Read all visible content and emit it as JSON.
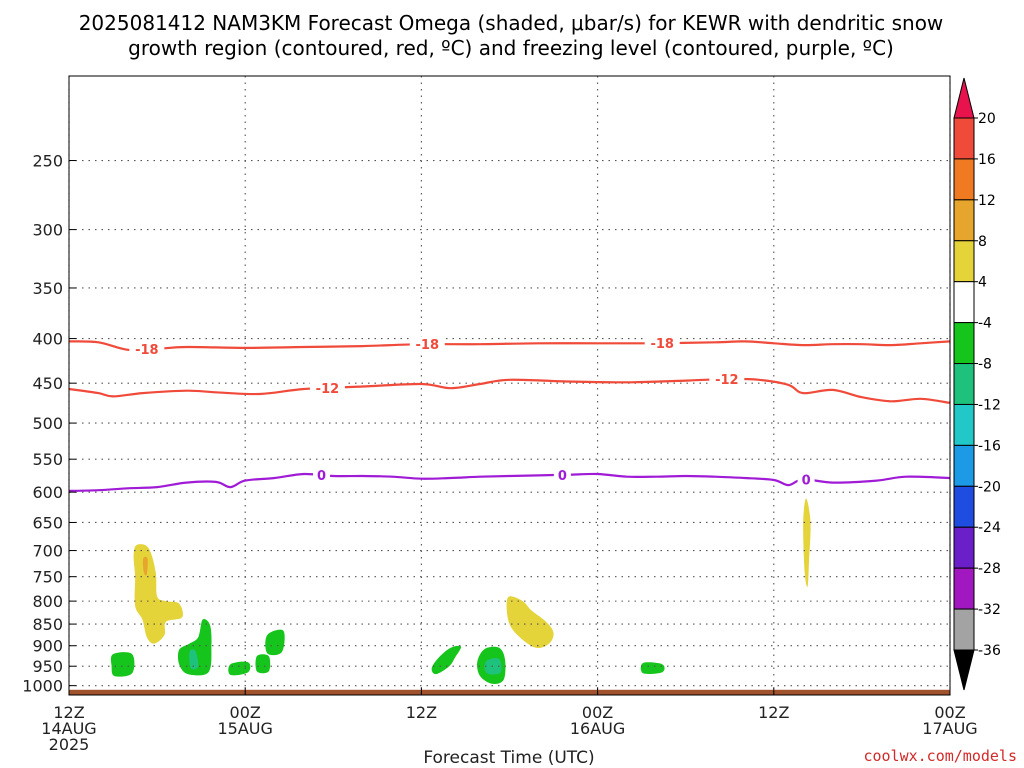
{
  "chart_data": {
    "type": "heatmap",
    "title_lines": [
      "2025081412 NAM3KM Forecast Omega (shaded, μbar/s) for KEWR with dendritic snow",
      "growth region (contoured, red, ºC) and freezing level (contoured, purple, ºC)"
    ],
    "xlabel": "Forecast Time (UTC)",
    "x_range_hours": [
      0,
      60
    ],
    "y_scale": "log-pressure",
    "y_range_hpa": [
      1025,
      200
    ],
    "y_ticks": [
      250,
      300,
      350,
      400,
      450,
      500,
      550,
      600,
      650,
      700,
      750,
      800,
      850,
      900,
      950,
      1000
    ],
    "x_ticks": [
      {
        "hour": 0,
        "lines": [
          "12Z",
          "14AUG",
          "2025"
        ]
      },
      {
        "hour": 12,
        "lines": [
          "00Z",
          "15AUG"
        ]
      },
      {
        "hour": 24,
        "lines": [
          "12Z"
        ]
      },
      {
        "hour": 36,
        "lines": [
          "00Z",
          "16AUG"
        ]
      },
      {
        "hour": 48,
        "lines": [
          "12Z"
        ]
      },
      {
        "hour": 60,
        "lines": [
          "00Z",
          "17AUG"
        ]
      }
    ],
    "grid": true,
    "colorbar": {
      "labels": [
        "20",
        "16",
        "12",
        "8",
        "4",
        "-4",
        "-8",
        "-12",
        "-16",
        "-20",
        "-24",
        "-28",
        "-32",
        "-36"
      ],
      "colors": [
        "#e8134d",
        "#ef4a3a",
        "#f07a22",
        "#e6a52c",
        "#e5d33a",
        "#ffffff",
        "#16c51c",
        "#1ec27d",
        "#22c8c8",
        "#1c9ae6",
        "#1f4de0",
        "#6a1fc8",
        "#a117c0",
        "#a3a3a3",
        "#000000"
      ]
    },
    "contours": [
      {
        "label": "-18",
        "color": "#ef4a3a",
        "points": [
          [
            0,
            403
          ],
          [
            2,
            404
          ],
          [
            4,
            412
          ],
          [
            6,
            411
          ],
          [
            8,
            409
          ],
          [
            12,
            410
          ],
          [
            16,
            409
          ],
          [
            20,
            408
          ],
          [
            24,
            406
          ],
          [
            28,
            406
          ],
          [
            32,
            405
          ],
          [
            36,
            405
          ],
          [
            40,
            405
          ],
          [
            44,
            404
          ],
          [
            46,
            403
          ],
          [
            48,
            405
          ],
          [
            50,
            407
          ],
          [
            52,
            406
          ],
          [
            54,
            406
          ],
          [
            56,
            407
          ],
          [
            58,
            405
          ],
          [
            60,
            403
          ]
        ],
        "label_hours": [
          5.3,
          24.4,
          40.4
        ]
      },
      {
        "label": "-12",
        "color": "#ef4a3a",
        "points": [
          [
            0,
            457
          ],
          [
            2,
            462
          ],
          [
            3,
            466
          ],
          [
            5,
            462
          ],
          [
            8,
            459
          ],
          [
            10,
            461
          ],
          [
            13,
            463
          ],
          [
            16,
            457
          ],
          [
            20,
            454
          ],
          [
            24,
            451
          ],
          [
            26,
            456
          ],
          [
            28,
            451
          ],
          [
            30,
            446
          ],
          [
            34,
            448
          ],
          [
            38,
            449
          ],
          [
            42,
            447
          ],
          [
            45,
            445
          ],
          [
            47,
            446
          ],
          [
            49,
            452
          ],
          [
            50,
            462
          ],
          [
            52,
            458
          ],
          [
            54,
            467
          ],
          [
            56,
            472
          ],
          [
            58,
            469
          ],
          [
            60,
            474
          ]
        ],
        "label_hours": [
          17.6,
          44.8
        ]
      },
      {
        "label": "0",
        "color": "#a01bd6",
        "points": [
          [
            0,
            598
          ],
          [
            2,
            597
          ],
          [
            4,
            594
          ],
          [
            6,
            592
          ],
          [
            8,
            585
          ],
          [
            10,
            584
          ],
          [
            11,
            592
          ],
          [
            12,
            582
          ],
          [
            14,
            578
          ],
          [
            16,
            572
          ],
          [
            18,
            575
          ],
          [
            20,
            575
          ],
          [
            22,
            576
          ],
          [
            24,
            579
          ],
          [
            26,
            578
          ],
          [
            28,
            576
          ],
          [
            30,
            575
          ],
          [
            32,
            574
          ],
          [
            34,
            573
          ],
          [
            36,
            572
          ],
          [
            38,
            576
          ],
          [
            40,
            576
          ],
          [
            42,
            575
          ],
          [
            44,
            576
          ],
          [
            46,
            578
          ],
          [
            48,
            581
          ],
          [
            49,
            589
          ],
          [
            50,
            580
          ],
          [
            52,
            585
          ],
          [
            55,
            582
          ],
          [
            57,
            576
          ],
          [
            60,
            578
          ]
        ],
        "label_hours": [
          17.2,
          33.6,
          50.2
        ]
      }
    ],
    "regions": [
      {
        "omega_range": [
          4,
          8
        ],
        "color": "#e5d33a",
        "polygon": [
          [
            4.6,
            690
          ],
          [
            5.4,
            695
          ],
          [
            5.9,
            740
          ],
          [
            6.0,
            790
          ],
          [
            6.6,
            800
          ],
          [
            7.5,
            805
          ],
          [
            7.7,
            835
          ],
          [
            6.6,
            845
          ],
          [
            6.5,
            875
          ],
          [
            5.8,
            895
          ],
          [
            5.3,
            880
          ],
          [
            5.0,
            840
          ],
          [
            4.5,
            810
          ],
          [
            4.5,
            750
          ],
          [
            4.4,
            710
          ]
        ]
      },
      {
        "omega_range": [
          8,
          12
        ],
        "color": "#e6a52c",
        "polygon": [
          [
            5.05,
            715
          ],
          [
            5.35,
            715
          ],
          [
            5.3,
            745
          ],
          [
            5.1,
            742
          ]
        ]
      },
      {
        "omega_range": [
          4,
          8
        ],
        "color": "#e5d33a",
        "polygon": [
          [
            30.0,
            790
          ],
          [
            30.9,
            800
          ],
          [
            31.5,
            820
          ],
          [
            32.5,
            845
          ],
          [
            33.0,
            870
          ],
          [
            32.7,
            895
          ],
          [
            31.8,
            905
          ],
          [
            30.7,
            880
          ],
          [
            30.0,
            850
          ],
          [
            29.8,
            810
          ]
        ]
      },
      {
        "omega_range": [
          4,
          8
        ],
        "color": "#e5d33a",
        "polygon": [
          [
            50.2,
            610
          ],
          [
            50.5,
            650
          ],
          [
            50.4,
            720
          ],
          [
            50.3,
            770
          ],
          [
            50.1,
            740
          ],
          [
            50.0,
            650
          ]
        ]
      },
      {
        "omega_range": [
          -8,
          -4
        ],
        "color": "#16c51c",
        "polygon": [
          [
            3.0,
            920
          ],
          [
            4.3,
            920
          ],
          [
            4.3,
            968
          ],
          [
            3.1,
            975
          ],
          [
            2.9,
            950
          ]
        ]
      },
      {
        "omega_range": [
          -8,
          -4
        ],
        "color": "#16c51c",
        "polygon": [
          [
            9.1,
            840
          ],
          [
            9.6,
            852
          ],
          [
            9.7,
            900
          ],
          [
            9.5,
            965
          ],
          [
            8.1,
            970
          ],
          [
            7.5,
            945
          ],
          [
            7.5,
            910
          ],
          [
            8.2,
            895
          ],
          [
            8.8,
            880
          ]
        ]
      },
      {
        "omega_range": [
          -12,
          -8
        ],
        "color": "#1ec27d",
        "polygon": [
          [
            8.2,
            915
          ],
          [
            8.6,
            912
          ],
          [
            8.8,
            950
          ],
          [
            8.3,
            955
          ]
        ]
      },
      {
        "omega_range": [
          -8,
          -4
        ],
        "color": "#16c51c",
        "polygon": [
          [
            11.0,
            945
          ],
          [
            12.2,
            940
          ],
          [
            12.2,
            965
          ],
          [
            11.0,
            972
          ]
        ]
      },
      {
        "omega_range": [
          -8,
          -4
        ],
        "color": "#16c51c",
        "polygon": [
          [
            12.8,
            925
          ],
          [
            13.6,
            925
          ],
          [
            13.6,
            963
          ],
          [
            12.8,
            963
          ]
        ]
      },
      {
        "omega_range": [
          -8,
          -4
        ],
        "color": "#16c51c",
        "polygon": [
          [
            13.5,
            875
          ],
          [
            14.6,
            865
          ],
          [
            14.5,
            915
          ],
          [
            13.5,
            918
          ]
        ]
      },
      {
        "omega_range": [
          -8,
          -4
        ],
        "color": "#16c51c",
        "polygon": [
          [
            26.0,
            905
          ],
          [
            26.7,
            902
          ],
          [
            26.3,
            928
          ],
          [
            25.9,
            950
          ],
          [
            25.0,
            970
          ],
          [
            24.7,
            955
          ],
          [
            25.2,
            928
          ]
        ]
      },
      {
        "omega_range": [
          -8,
          -4
        ],
        "color": "#16c51c",
        "polygon": [
          [
            28.3,
            908
          ],
          [
            29.3,
            905
          ],
          [
            29.7,
            935
          ],
          [
            29.6,
            985
          ],
          [
            28.8,
            995
          ],
          [
            28.0,
            975
          ],
          [
            27.8,
            940
          ]
        ]
      },
      {
        "omega_range": [
          -12,
          -8
        ],
        "color": "#1ec27d",
        "polygon": [
          [
            28.5,
            935
          ],
          [
            29.3,
            932
          ],
          [
            29.4,
            965
          ],
          [
            28.6,
            970
          ],
          [
            28.3,
            955
          ]
        ]
      },
      {
        "omega_range": [
          -8,
          -4
        ],
        "color": "#16c51c",
        "polygon": [
          [
            39.1,
            942
          ],
          [
            40.4,
            945
          ],
          [
            40.4,
            965
          ],
          [
            39.1,
            968
          ]
        ]
      }
    ],
    "terrain": {
      "color": "#a0522d",
      "top_hpa": 1011
    }
  },
  "credit": "coolwx.com/models"
}
